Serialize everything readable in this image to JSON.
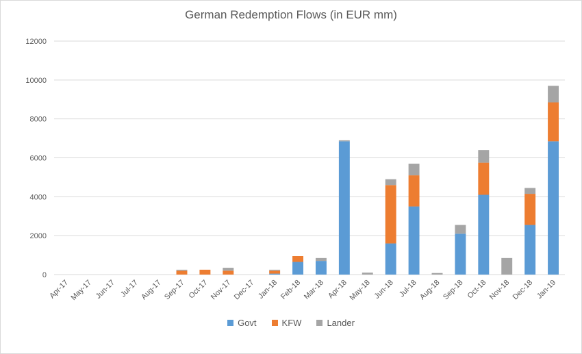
{
  "chart_data": {
    "type": "bar",
    "stacked": true,
    "title": "German Redemption Flows (in EUR mm)",
    "xlabel": "",
    "ylabel": "",
    "ylim": [
      0,
      12000
    ],
    "yticks": [
      0,
      2000,
      4000,
      6000,
      8000,
      10000,
      12000
    ],
    "grid": true,
    "legend_position": "bottom",
    "categories": [
      "Apr-17",
      "May-17",
      "Jun-17",
      "Jul-17",
      "Aug-17",
      "Sep-17",
      "Oct-17",
      "Nov-17",
      "Dec-17",
      "Jan-18",
      "Feb-18",
      "Mar-18",
      "Apr-18",
      "May-18",
      "Jun-18",
      "Jul-18",
      "Aug-18",
      "Sep-18",
      "Oct-18",
      "Nov-18",
      "Dec-18",
      "Jan-19"
    ],
    "series": [
      {
        "name": "Govt",
        "color": "#5b9bd5",
        "values": [
          0,
          0,
          0,
          0,
          0,
          0,
          0,
          0,
          0,
          50,
          650,
          700,
          6850,
          0,
          1600,
          3500,
          0,
          2100,
          4100,
          0,
          2550,
          6850
        ]
      },
      {
        "name": "KFW",
        "color": "#ed7d31",
        "values": [
          0,
          0,
          0,
          0,
          0,
          200,
          250,
          200,
          0,
          150,
          300,
          0,
          0,
          0,
          3000,
          1600,
          0,
          0,
          1650,
          0,
          1600,
          2000
        ]
      },
      {
        "name": "Lander",
        "color": "#a5a5a5",
        "values": [
          0,
          0,
          0,
          0,
          0,
          50,
          0,
          150,
          0,
          50,
          0,
          150,
          50,
          100,
          300,
          600,
          80,
          450,
          650,
          850,
          300,
          850
        ]
      }
    ]
  }
}
